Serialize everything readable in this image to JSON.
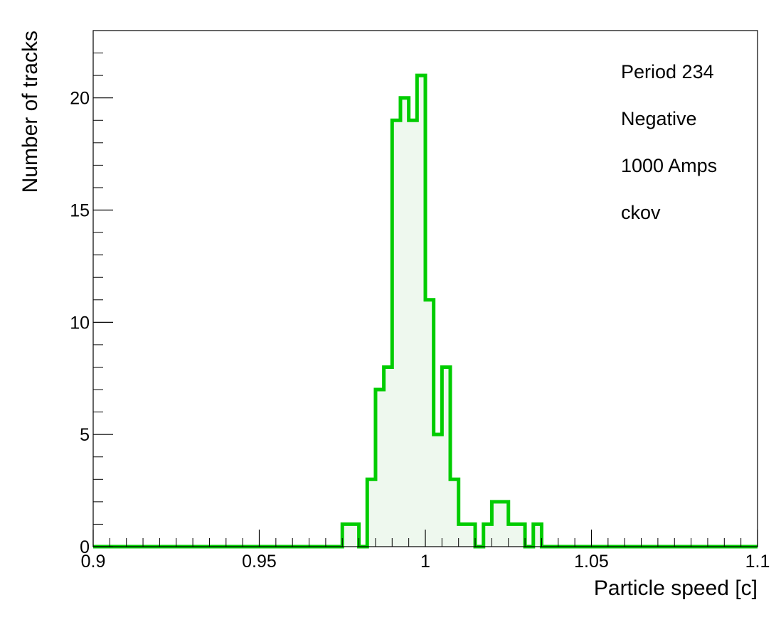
{
  "chart_data": {
    "type": "bar",
    "style": "step-histogram",
    "xlabel": "Particle speed [c]",
    "ylabel": "Number of tracks",
    "xlim": [
      0.9,
      1.1
    ],
    "ylim": [
      0,
      23
    ],
    "x_ticks": [
      0.9,
      0.95,
      1.0,
      1.05,
      1.1
    ],
    "x_tick_labels": [
      "0.9",
      "0.95",
      "1",
      "1.05",
      "1.1"
    ],
    "y_ticks": [
      0,
      5,
      10,
      15,
      20
    ],
    "y_tick_labels": [
      "0",
      "5",
      "10",
      "15",
      "20"
    ],
    "bin_edges": [
      0.9,
      0.975,
      0.98,
      0.9825,
      0.985,
      0.9875,
      0.99,
      0.9925,
      0.995,
      0.9975,
      1.0,
      1.0025,
      1.005,
      1.0075,
      1.01,
      1.015,
      1.0175,
      1.02,
      1.025,
      1.03,
      1.0325,
      1.035,
      1.045,
      1.1
    ],
    "values": [
      0,
      1,
      0,
      3,
      7,
      8,
      19,
      20,
      19,
      21,
      11,
      5,
      8,
      3,
      1,
      0,
      1,
      2,
      1,
      0,
      1,
      0,
      0
    ],
    "line_color": "#00cc00",
    "fill_color": "#eef8ee",
    "grid": false,
    "legend": false,
    "annotations": [
      "Period 234",
      "Negative",
      "1000 Amps",
      "ckov"
    ]
  }
}
